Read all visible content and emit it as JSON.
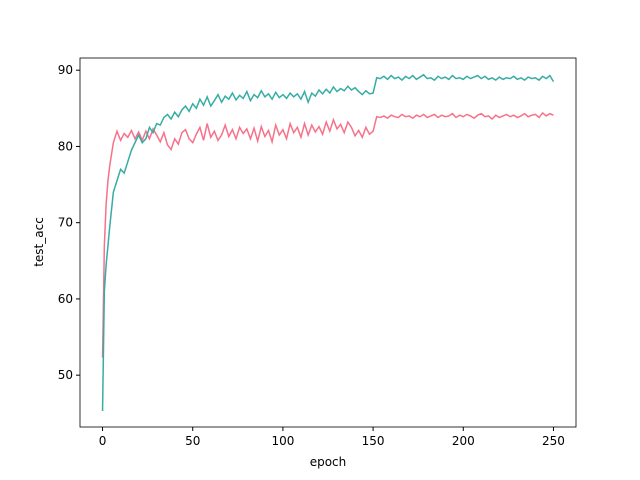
{
  "chart_data": {
    "type": "line",
    "xlabel": "epoch",
    "ylabel": "test_acc",
    "x": [
      0,
      1,
      2,
      3,
      4,
      6,
      8,
      10,
      12,
      14,
      16,
      18,
      20,
      22,
      24,
      26,
      28,
      30,
      32,
      34,
      36,
      38,
      40,
      42,
      44,
      46,
      48,
      50,
      52,
      54,
      56,
      58,
      60,
      62,
      64,
      66,
      68,
      70,
      72,
      74,
      76,
      78,
      80,
      82,
      84,
      86,
      88,
      90,
      92,
      94,
      96,
      98,
      100,
      102,
      104,
      106,
      108,
      110,
      112,
      114,
      116,
      118,
      120,
      122,
      124,
      126,
      128,
      130,
      132,
      134,
      136,
      138,
      140,
      142,
      144,
      146,
      148,
      150,
      152,
      154,
      156,
      158,
      160,
      162,
      164,
      166,
      168,
      170,
      172,
      174,
      176,
      178,
      180,
      182,
      184,
      186,
      188,
      190,
      192,
      194,
      196,
      198,
      200,
      202,
      204,
      206,
      208,
      210,
      212,
      214,
      216,
      218,
      220,
      222,
      224,
      226,
      228,
      230,
      232,
      234,
      236,
      238,
      240,
      242,
      244,
      246,
      248,
      250
    ],
    "series": [
      {
        "color": "#f77189",
        "values": [
          52.3,
          67.0,
          72.5,
          75.5,
          77.5,
          80.5,
          82.0,
          80.8,
          81.7,
          81.2,
          82.1,
          81.0,
          81.9,
          80.8,
          82.0,
          81.0,
          82.3,
          81.5,
          80.6,
          81.8,
          80.2,
          79.6,
          81.0,
          80.3,
          81.8,
          82.2,
          81.0,
          80.5,
          81.6,
          82.5,
          80.8,
          83.0,
          81.2,
          82.0,
          80.8,
          81.5,
          82.8,
          81.3,
          82.2,
          81.0,
          82.5,
          81.7,
          82.3,
          81.0,
          82.4,
          80.7,
          82.6,
          81.3,
          82.1,
          80.6,
          82.8,
          81.5,
          82.2,
          81.0,
          83.0,
          81.8,
          82.5,
          81.2,
          83.0,
          81.5,
          82.8,
          81.9,
          82.6,
          81.6,
          83.2,
          82.0,
          83.5,
          82.3,
          82.9,
          81.8,
          83.2,
          82.5,
          81.4,
          82.1,
          81.2,
          82.5,
          81.6,
          82.0,
          83.9,
          83.8,
          84.0,
          83.7,
          84.1,
          83.9,
          83.8,
          84.2,
          83.9,
          84.0,
          83.7,
          84.1,
          83.9,
          84.2,
          83.8,
          84.0,
          84.2,
          83.8,
          84.1,
          83.9,
          84.0,
          84.3,
          83.8,
          84.1,
          83.9,
          84.2,
          84.0,
          83.7,
          84.1,
          84.3,
          83.9,
          84.0,
          83.6,
          84.1,
          83.8,
          84.0,
          84.2,
          83.9,
          84.1,
          83.8,
          84.0,
          84.3,
          83.9,
          84.1,
          84.2,
          83.8,
          84.4,
          84.0,
          84.3,
          84.1
        ]
      },
      {
        "color": "#36ada4",
        "values": [
          45.3,
          61.0,
          64.5,
          67.0,
          69.5,
          74.0,
          75.5,
          77.0,
          76.5,
          78.0,
          79.5,
          80.5,
          81.5,
          80.5,
          81.0,
          82.5,
          81.8,
          83.0,
          82.8,
          83.8,
          84.2,
          83.6,
          84.5,
          83.9,
          84.8,
          85.3,
          84.6,
          85.6,
          85.0,
          86.2,
          85.4,
          86.5,
          85.3,
          86.0,
          86.8,
          85.8,
          86.6,
          86.2,
          87.0,
          86.1,
          86.7,
          86.3,
          87.2,
          86.0,
          86.8,
          86.4,
          87.3,
          86.5,
          86.9,
          86.2,
          87.1,
          86.4,
          86.8,
          86.3,
          87.0,
          86.5,
          86.9,
          86.2,
          87.2,
          85.8,
          87.0,
          86.6,
          87.4,
          86.9,
          87.5,
          87.0,
          87.8,
          87.2,
          87.6,
          87.3,
          87.9,
          87.4,
          87.7,
          87.2,
          86.8,
          87.3,
          86.9,
          87.0,
          89.0,
          88.9,
          89.2,
          88.8,
          89.3,
          88.9,
          89.1,
          88.7,
          89.2,
          88.9,
          89.3,
          88.8,
          89.1,
          89.4,
          88.9,
          89.0,
          88.7,
          89.2,
          88.9,
          89.1,
          88.8,
          89.3,
          88.9,
          89.0,
          88.8,
          89.2,
          88.9,
          89.1,
          89.3,
          88.9,
          89.2,
          88.8,
          89.0,
          88.7,
          89.1,
          88.8,
          89.0,
          88.9,
          89.2,
          88.8,
          89.0,
          88.7,
          89.1,
          88.9,
          89.0,
          88.7,
          89.2,
          88.9,
          89.3,
          88.5
        ]
      }
    ],
    "xlim": [
      -12.5,
      262.5
    ],
    "xticks": [
      0,
      50,
      100,
      150,
      200,
      250
    ],
    "ylim": [
      43.2,
      91.6
    ],
    "yticks": [
      50,
      60,
      70,
      80,
      90
    ],
    "grid": false
  }
}
